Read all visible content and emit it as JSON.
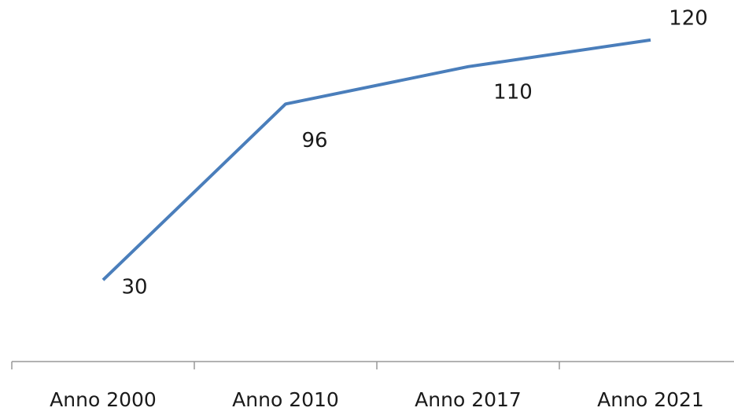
{
  "chart_data": {
    "type": "line",
    "categories": [
      "Anno 2000",
      "Anno 2010",
      "Anno 2017",
      "Anno 2021"
    ],
    "series": [
      {
        "values": [
          30,
          96,
          110,
          120
        ],
        "color": "#4a7ebb"
      }
    ],
    "ylim": [
      0,
      135
    ]
  }
}
